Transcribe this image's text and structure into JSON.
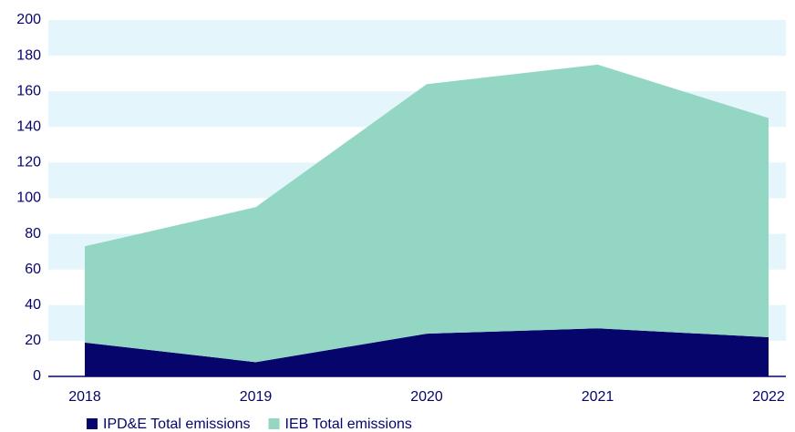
{
  "chart_data": {
    "type": "stacked_area",
    "categories": [
      "2018",
      "2019",
      "2020",
      "2021",
      "2022"
    ],
    "series": [
      {
        "name": "IPD&E Total emissions",
        "color": "#05056b",
        "values": [
          19,
          8,
          24,
          27,
          22
        ]
      },
      {
        "name": "IEB Total emissions",
        "color": "#93d6c4",
        "values": [
          54,
          87,
          140,
          148,
          123
        ]
      }
    ],
    "ylim": [
      0,
      200
    ],
    "yticks": [
      0,
      20,
      40,
      60,
      80,
      100,
      120,
      140,
      160,
      180,
      200
    ],
    "grid": "bands",
    "band_color": "#e4f5fb",
    "legend": "bottom-left"
  }
}
